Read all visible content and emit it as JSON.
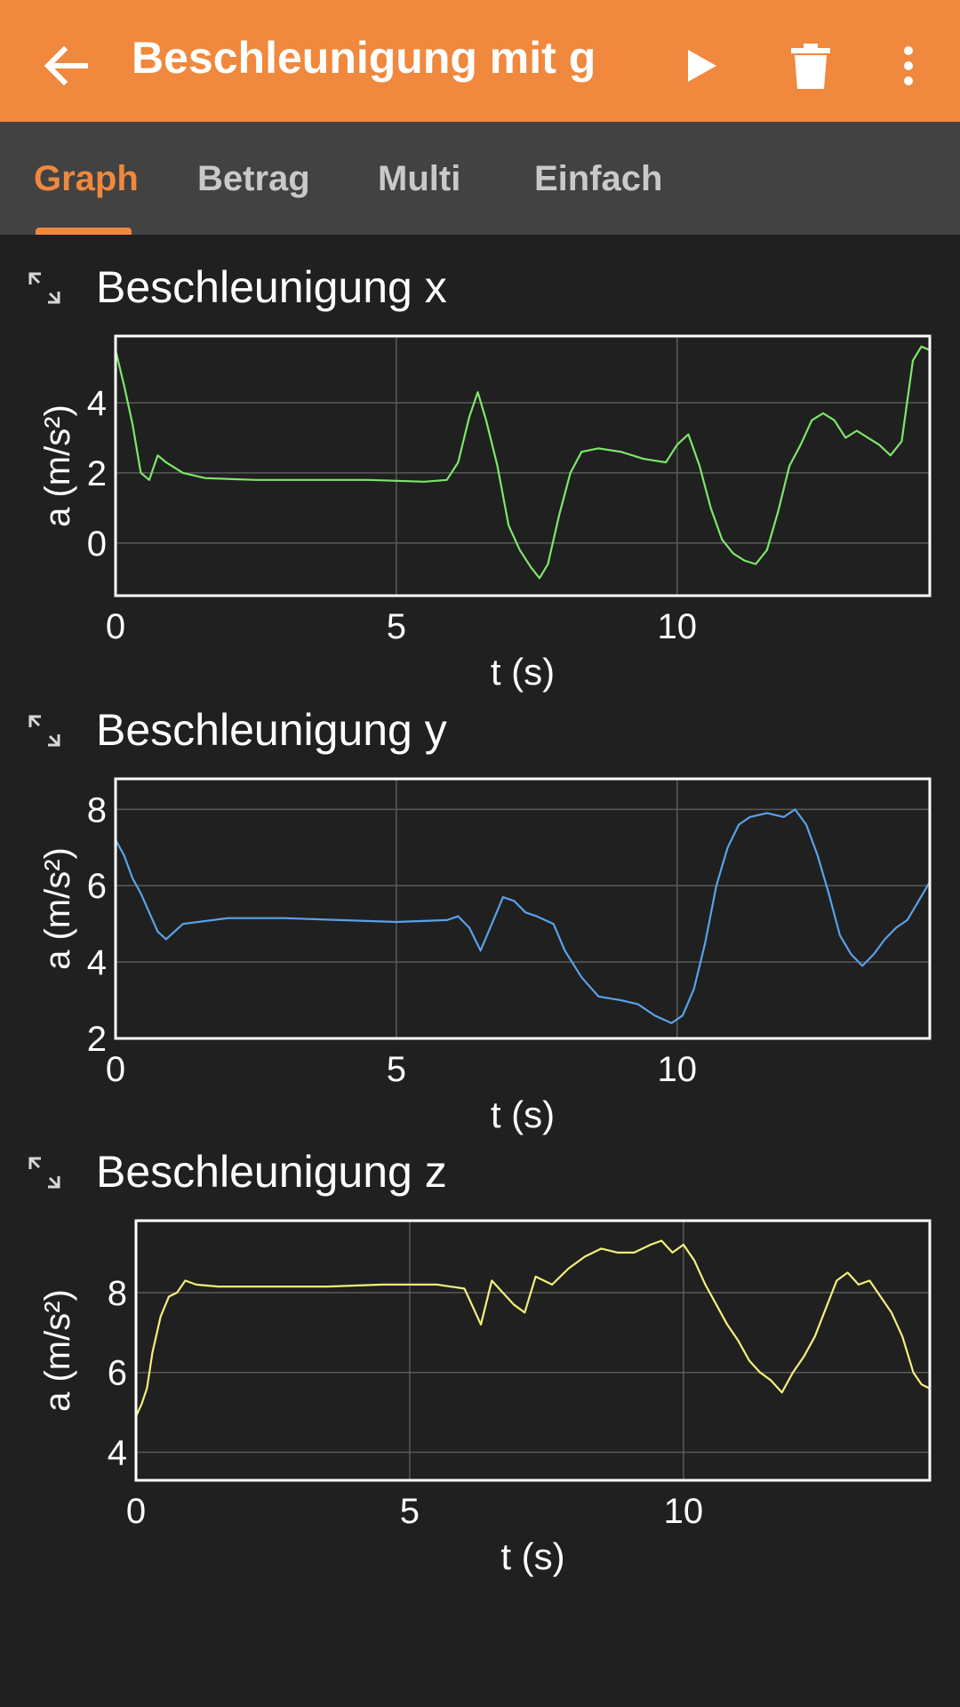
{
  "toolbar": {
    "title": "Beschleunigung mit g",
    "back_icon": "arrow-left-icon",
    "play_icon": "play-icon",
    "delete_icon": "trash-icon",
    "menu_icon": "more-vert-icon"
  },
  "colors": {
    "accent": "#f0883d",
    "background": "#202020",
    "tabbar": "#424242",
    "x_series": "#7ee66b",
    "y_series": "#5aa2ea",
    "z_series": "#f2f07a"
  },
  "tabs": [
    {
      "label": "Graph",
      "active": true
    },
    {
      "label": "Betrag",
      "active": false
    },
    {
      "label": "Multi",
      "active": false
    },
    {
      "label": "Einfach",
      "active": false
    }
  ],
  "graphs": [
    {
      "title": "Beschleunigung x",
      "expand_icon": "expand-icon"
    },
    {
      "title": "Beschleunigung y",
      "expand_icon": "expand-icon"
    },
    {
      "title": "Beschleunigung z",
      "expand_icon": "expand-icon"
    }
  ],
  "chart_data": [
    {
      "type": "line",
      "title": "Beschleunigung x",
      "xlabel": "t (s)",
      "ylabel": "a (m/s²)",
      "xlim": [
        0,
        14.5
      ],
      "ylim": [
        -1.5,
        5.9
      ],
      "xticks": [
        0,
        5,
        10
      ],
      "yticks": [
        0,
        2,
        4
      ],
      "grid": true,
      "color": "#7ee66b",
      "x": [
        0,
        0.15,
        0.3,
        0.45,
        0.6,
        0.75,
        0.9,
        1.2,
        1.6,
        2.5,
        3.5,
        4.5,
        5.5,
        5.9,
        6.1,
        6.3,
        6.45,
        6.6,
        6.8,
        7.0,
        7.2,
        7.4,
        7.55,
        7.7,
        7.9,
        8.1,
        8.3,
        8.6,
        9.0,
        9.4,
        9.8,
        10.0,
        10.2,
        10.4,
        10.6,
        10.8,
        11.0,
        11.2,
        11.4,
        11.6,
        11.8,
        12.0,
        12.2,
        12.4,
        12.6,
        12.8,
        13.0,
        13.2,
        13.4,
        13.6,
        13.8,
        14.0,
        14.2,
        14.35,
        14.5
      ],
      "y": [
        5.5,
        4.5,
        3.4,
        2.0,
        1.8,
        2.5,
        2.3,
        2.0,
        1.85,
        1.8,
        1.8,
        1.8,
        1.75,
        1.8,
        2.3,
        3.6,
        4.3,
        3.5,
        2.2,
        0.5,
        -0.2,
        -0.7,
        -1.0,
        -0.6,
        0.8,
        2.0,
        2.6,
        2.7,
        2.6,
        2.4,
        2.3,
        2.8,
        3.1,
        2.2,
        1.0,
        0.1,
        -0.3,
        -0.5,
        -0.6,
        -0.2,
        0.9,
        2.2,
        2.8,
        3.5,
        3.7,
        3.5,
        3.0,
        3.2,
        3.0,
        2.8,
        2.5,
        2.9,
        5.2,
        5.6,
        5.5
      ]
    },
    {
      "type": "line",
      "title": "Beschleunigung y",
      "xlabel": "t (s)",
      "ylabel": "a (m/s²)",
      "xlim": [
        0,
        14.5
      ],
      "ylim": [
        2,
        8.8
      ],
      "xticks": [
        0,
        5,
        10
      ],
      "yticks": [
        2,
        4,
        6,
        8
      ],
      "grid": true,
      "color": "#5aa2ea",
      "x": [
        0,
        0.15,
        0.3,
        0.45,
        0.6,
        0.75,
        0.9,
        1.2,
        2,
        3,
        4,
        5,
        5.9,
        6.1,
        6.3,
        6.5,
        6.7,
        6.9,
        7.1,
        7.3,
        7.5,
        7.8,
        8.0,
        8.3,
        8.6,
        9.0,
        9.3,
        9.6,
        9.9,
        10.1,
        10.3,
        10.5,
        10.7,
        10.9,
        11.1,
        11.3,
        11.6,
        11.9,
        12.1,
        12.3,
        12.5,
        12.7,
        12.9,
        13.1,
        13.3,
        13.5,
        13.7,
        13.9,
        14.1,
        14.3,
        14.5
      ],
      "y": [
        7.2,
        6.8,
        6.2,
        5.8,
        5.3,
        4.8,
        4.6,
        5.0,
        5.15,
        5.15,
        5.1,
        5.05,
        5.1,
        5.2,
        4.9,
        4.3,
        5.0,
        5.7,
        5.6,
        5.3,
        5.2,
        5.0,
        4.3,
        3.6,
        3.1,
        3.0,
        2.9,
        2.6,
        2.4,
        2.6,
        3.3,
        4.5,
        6.0,
        7.0,
        7.6,
        7.8,
        7.9,
        7.8,
        8.0,
        7.6,
        6.8,
        5.8,
        4.7,
        4.2,
        3.9,
        4.2,
        4.6,
        4.9,
        5.1,
        5.6,
        6.1
      ]
    },
    {
      "type": "line",
      "title": "Beschleunigung z",
      "xlabel": "t (s)",
      "ylabel": "a (m/s²)",
      "xlim": [
        0,
        14.5
      ],
      "ylim": [
        3.3,
        9.8
      ],
      "xticks": [
        0,
        5,
        10
      ],
      "yticks": [
        4,
        6,
        8
      ],
      "grid": true,
      "color": "#f2f07a",
      "x": [
        0,
        0.1,
        0.2,
        0.3,
        0.45,
        0.6,
        0.75,
        0.9,
        1.1,
        1.5,
        2.5,
        3.5,
        4.5,
        5.5,
        6.0,
        6.1,
        6.3,
        6.5,
        6.7,
        6.9,
        7.1,
        7.3,
        7.6,
        7.9,
        8.2,
        8.5,
        8.8,
        9.1,
        9.4,
        9.6,
        9.8,
        10.0,
        10.2,
        10.4,
        10.6,
        10.8,
        11.0,
        11.2,
        11.4,
        11.6,
        11.8,
        12.0,
        12.2,
        12.4,
        12.6,
        12.8,
        13.0,
        13.2,
        13.4,
        13.6,
        13.8,
        14.0,
        14.2,
        14.35,
        14.5
      ],
      "y": [
        4.9,
        5.2,
        5.6,
        6.5,
        7.4,
        7.9,
        8.0,
        8.3,
        8.2,
        8.15,
        8.15,
        8.15,
        8.2,
        8.2,
        8.1,
        7.8,
        7.2,
        8.3,
        8.0,
        7.7,
        7.5,
        8.4,
        8.2,
        8.6,
        8.9,
        9.1,
        9.0,
        9.0,
        9.2,
        9.3,
        9.0,
        9.2,
        8.8,
        8.2,
        7.7,
        7.2,
        6.8,
        6.3,
        6.0,
        5.8,
        5.5,
        6.0,
        6.4,
        6.9,
        7.6,
        8.3,
        8.5,
        8.2,
        8.3,
        7.9,
        7.5,
        6.9,
        6.0,
        5.7,
        5.6
      ]
    }
  ]
}
